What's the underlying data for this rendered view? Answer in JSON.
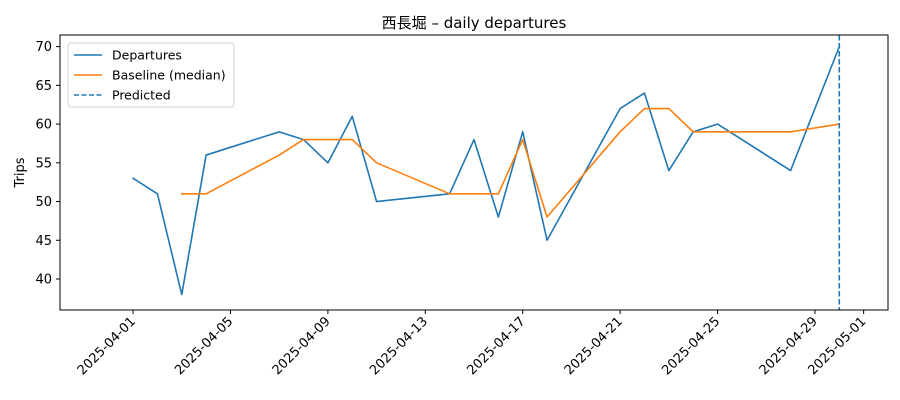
{
  "chart_data": {
    "type": "line",
    "title": "西長堀 – daily departures",
    "xlabel": "",
    "ylabel": "Trips",
    "x_axis": {
      "type": "date",
      "range": [
        "2025-03-29",
        "2025-05-02"
      ],
      "ticks": [
        "2025-04-01",
        "2025-04-05",
        "2025-04-09",
        "2025-04-13",
        "2025-04-17",
        "2025-04-21",
        "2025-04-25",
        "2025-04-29",
        "2025-05-01"
      ]
    },
    "y_axis": {
      "range": [
        36.0,
        71.5
      ],
      "ticks": [
        40,
        45,
        50,
        55,
        60,
        65,
        70
      ]
    },
    "grid": false,
    "legend": {
      "placement": "top-left"
    },
    "series": [
      {
        "name": "Departures",
        "color": "#1f77b4",
        "style": "solid",
        "points": [
          {
            "x": "2025-04-01",
            "y": 53
          },
          {
            "x": "2025-04-02",
            "y": 51
          },
          {
            "x": "2025-04-03",
            "y": 38
          },
          {
            "x": "2025-04-04",
            "y": 56
          },
          {
            "x": "2025-04-07",
            "y": 59
          },
          {
            "x": "2025-04-08",
            "y": 58
          },
          {
            "x": "2025-04-09",
            "y": 55
          },
          {
            "x": "2025-04-10",
            "y": 61
          },
          {
            "x": "2025-04-11",
            "y": 50
          },
          {
            "x": "2025-04-14",
            "y": 51
          },
          {
            "x": "2025-04-15",
            "y": 58
          },
          {
            "x": "2025-04-16",
            "y": 48
          },
          {
            "x": "2025-04-17",
            "y": 59
          },
          {
            "x": "2025-04-18",
            "y": 45
          },
          {
            "x": "2025-04-21",
            "y": 62
          },
          {
            "x": "2025-04-22",
            "y": 64
          },
          {
            "x": "2025-04-23",
            "y": 54
          },
          {
            "x": "2025-04-24",
            "y": 59
          },
          {
            "x": "2025-04-25",
            "y": 60
          },
          {
            "x": "2025-04-28",
            "y": 54
          },
          {
            "x": "2025-04-30",
            "y": 70
          }
        ]
      },
      {
        "name": "Baseline (median)",
        "color": "#ff7f0e",
        "style": "solid",
        "points": [
          {
            "x": "2025-04-03",
            "y": 51
          },
          {
            "x": "2025-04-04",
            "y": 51
          },
          {
            "x": "2025-04-07",
            "y": 56
          },
          {
            "x": "2025-04-08",
            "y": 58
          },
          {
            "x": "2025-04-09",
            "y": 58
          },
          {
            "x": "2025-04-10",
            "y": 58
          },
          {
            "x": "2025-04-11",
            "y": 55
          },
          {
            "x": "2025-04-14",
            "y": 51
          },
          {
            "x": "2025-04-15",
            "y": 51
          },
          {
            "x": "2025-04-16",
            "y": 51
          },
          {
            "x": "2025-04-17",
            "y": 58
          },
          {
            "x": "2025-04-18",
            "y": 48
          },
          {
            "x": "2025-04-21",
            "y": 59
          },
          {
            "x": "2025-04-22",
            "y": 62
          },
          {
            "x": "2025-04-23",
            "y": 62
          },
          {
            "x": "2025-04-24",
            "y": 59
          },
          {
            "x": "2025-04-25",
            "y": 59
          },
          {
            "x": "2025-04-28",
            "y": 59
          },
          {
            "x": "2025-04-30",
            "y": 60
          }
        ]
      },
      {
        "name": "Predicted",
        "color": "#1f77b4",
        "style": "dashed",
        "kind": "vertical-line",
        "x": "2025-04-30"
      }
    ]
  }
}
